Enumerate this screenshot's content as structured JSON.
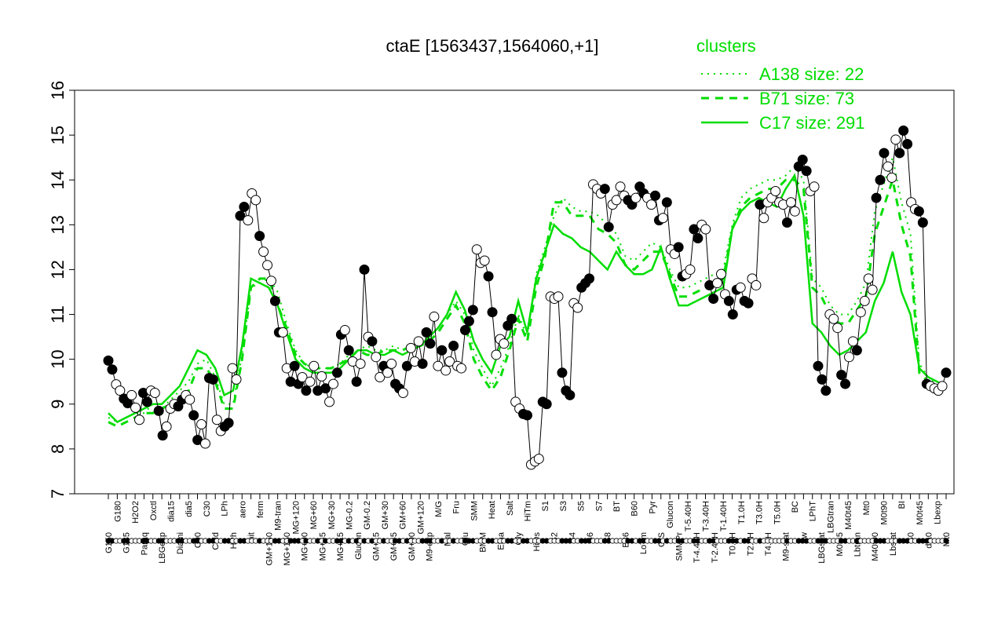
{
  "chart_data": {
    "type": "line",
    "title": "ctaE [1563437,1564060,+1]",
    "xlabel": "",
    "ylabel": "",
    "ylim": [
      7,
      16
    ],
    "yticks": [
      7,
      8,
      9,
      10,
      11,
      12,
      13,
      14,
      15,
      16
    ],
    "x_tick_labels": [
      "G150",
      "G180",
      "G135",
      "H2O2",
      "Paraq",
      "Oxctl",
      "LBGexp",
      "dia15",
      "Diami",
      "dia5",
      "C90",
      "C30",
      "Cold",
      "LPh",
      "HPh",
      "aero",
      "nit",
      "ferm",
      "GM+150",
      "M9-tran",
      "MG+150",
      "MG+120",
      "MG+90",
      "MG+60",
      "MG+45",
      "MG+30",
      "MG+15",
      "MG-0.2",
      "Glucon",
      "GM-0.2",
      "GM+15",
      "GM+30",
      "GM+45",
      "GM+60",
      "GM+90",
      "GM+120",
      "M9-exp",
      "M/G",
      "Mal",
      "Fru",
      "Glu",
      "SMM",
      "BMM",
      "Heat",
      "Etha",
      "Salt",
      "Gly",
      "HiTm",
      "HiOs",
      "S1",
      "S2",
      "S3",
      "S4",
      "S5",
      "S6",
      "S7",
      "S8",
      "BT",
      "B36",
      "B60",
      "LoTm",
      "Pyr",
      "G/S",
      "Glucon",
      "SMMPr",
      "T-5.40H",
      "T-4.40H",
      "T-3.40H",
      "T-2.40H",
      "T-1.40H",
      "T0.0H",
      "T1.0H",
      "T2.0H",
      "T3.0H",
      "T4.0H",
      "T5.0H",
      "M9-stat",
      "BC",
      "Sw",
      "LPhT",
      "LBGstat",
      "LBGtran",
      "M0t45",
      "M40t45",
      "Lbtran",
      "Mt0",
      "M40t90",
      "M0t90",
      "Lbstat",
      "BI",
      "S0",
      "M0t45",
      "dia0",
      "Lbexp",
      "Mt0"
    ],
    "series": [
      {
        "name": "A138 size: 22",
        "style": "dotted",
        "values": [
          8.7,
          8.6,
          8.7,
          8.8,
          8.8,
          9.0,
          8.9,
          9.1,
          9.3,
          9.5,
          9.9,
          10.0,
          9.6,
          9.0,
          9.0,
          10.1,
          11.6,
          11.7,
          11.8,
          11.5,
          10.8,
          10.2,
          9.9,
          9.8,
          9.8,
          9.8,
          9.9,
          10.1,
          10.2,
          10.3,
          10.2,
          10.2,
          10.3,
          10.2,
          10.3,
          10.4,
          10.5,
          10.7,
          11.0,
          11.3,
          11.0,
          10.2,
          9.8,
          9.4,
          9.8,
          10.3,
          11.0,
          10.5,
          11.9,
          12.5,
          13.2,
          13.6,
          13.4,
          13.3,
          13.3,
          13.2,
          13.0,
          12.8,
          12.3,
          12.2,
          12.4,
          12.6,
          12.5,
          12.0,
          11.6,
          11.6,
          11.7,
          11.8,
          11.9,
          12.0,
          13.0,
          13.6,
          13.8,
          13.9,
          14.0,
          14.0,
          14.1,
          14.3,
          14.0,
          11.8,
          11.6,
          11.2,
          11.0,
          11.0,
          11.3,
          11.7,
          13.3,
          13.9,
          14.5,
          13.5,
          12.8,
          9.9,
          9.6,
          9.4,
          9.4
        ]
      },
      {
        "name": "B71 size: 73",
        "style": "dashed",
        "values": [
          8.6,
          8.5,
          8.6,
          8.7,
          8.8,
          8.8,
          8.9,
          9.0,
          9.1,
          9.3,
          9.8,
          9.8,
          9.5,
          8.9,
          8.9,
          10.0,
          11.6,
          11.8,
          11.8,
          11.2,
          10.7,
          10.1,
          9.9,
          9.8,
          9.8,
          9.8,
          9.9,
          10.0,
          10.2,
          10.1,
          10.1,
          10.2,
          10.2,
          10.2,
          10.3,
          10.3,
          10.4,
          10.6,
          10.9,
          11.2,
          10.8,
          10.0,
          9.6,
          9.3,
          9.6,
          10.2,
          10.9,
          10.4,
          11.6,
          12.3,
          13.5,
          13.5,
          13.2,
          13.2,
          13.2,
          12.9,
          12.8,
          12.6,
          12.1,
          12.0,
          12.2,
          12.4,
          12.4,
          11.9,
          11.4,
          11.4,
          11.5,
          11.6,
          11.7,
          11.8,
          12.9,
          13.4,
          13.6,
          13.7,
          13.8,
          13.8,
          14.0,
          14.0,
          13.8,
          11.6,
          11.4,
          11.0,
          10.8,
          10.8,
          11.1,
          11.4,
          12.8,
          13.4,
          14.0,
          13.0,
          12.3,
          9.7,
          9.5,
          9.3,
          9.3
        ]
      },
      {
        "name": "C17 size: 291",
        "style": "solid",
        "values": [
          8.8,
          8.6,
          8.7,
          8.8,
          8.9,
          9.0,
          9.0,
          9.2,
          9.4,
          9.8,
          10.2,
          10.1,
          9.8,
          9.2,
          9.3,
          10.3,
          11.8,
          11.7,
          11.6,
          11.2,
          10.6,
          10.0,
          9.8,
          9.7,
          9.7,
          9.7,
          9.8,
          10.0,
          10.2,
          10.2,
          10.1,
          10.1,
          10.2,
          10.1,
          10.2,
          10.3,
          10.5,
          10.7,
          11.0,
          11.5,
          11.1,
          10.4,
          10.0,
          9.7,
          10.3,
          10.5,
          11.3,
          10.6,
          11.8,
          12.4,
          13.0,
          12.8,
          12.7,
          12.5,
          12.4,
          12.2,
          12.0,
          12.4,
          12.1,
          11.9,
          11.9,
          12.0,
          12.5,
          11.8,
          11.2,
          11.2,
          11.3,
          11.4,
          11.5,
          11.6,
          12.9,
          13.3,
          13.5,
          13.6,
          13.5,
          13.4,
          13.8,
          14.1,
          13.2,
          10.8,
          10.6,
          10.3,
          10.1,
          10.2,
          10.4,
          10.6,
          11.3,
          11.7,
          12.4,
          11.5,
          11.0,
          9.8,
          9.6,
          9.5,
          9.4
        ]
      }
    ],
    "points": [
      [
        9.97,
        "f"
      ],
      [
        9.77,
        "f"
      ],
      [
        9.44,
        "o"
      ],
      [
        9.3,
        "o"
      ],
      [
        9.12,
        "f"
      ],
      [
        9.02,
        "f"
      ],
      [
        9.2,
        "o"
      ],
      [
        8.92,
        "o"
      ],
      [
        8.65,
        "o"
      ],
      [
        9.25,
        "f"
      ],
      [
        9.05,
        "f"
      ],
      [
        9.3,
        "o"
      ],
      [
        9.25,
        "o"
      ],
      [
        8.85,
        "f"
      ],
      [
        8.3,
        "f"
      ],
      [
        8.5,
        "o"
      ],
      [
        8.9,
        "o"
      ],
      [
        9.0,
        "o"
      ],
      [
        8.95,
        "f"
      ],
      [
        9.1,
        "f"
      ],
      [
        9.2,
        "o"
      ],
      [
        9.1,
        "o"
      ],
      [
        8.75,
        "f"
      ],
      [
        8.2,
        "f"
      ],
      [
        8.55,
        "o"
      ],
      [
        8.12,
        "o"
      ],
      [
        9.58,
        "f"
      ],
      [
        9.55,
        "f"
      ],
      [
        8.65,
        "o"
      ],
      [
        8.4,
        "o"
      ],
      [
        8.5,
        "f"
      ],
      [
        8.58,
        "f"
      ],
      [
        9.8,
        "o"
      ],
      [
        9.55,
        "o"
      ],
      [
        13.2,
        "f"
      ],
      [
        13.4,
        "f"
      ],
      [
        13.1,
        "o"
      ],
      [
        13.7,
        "o"
      ],
      [
        13.55,
        "o"
      ],
      [
        12.75,
        "f"
      ],
      [
        12.4,
        "o"
      ],
      [
        12.1,
        "o"
      ],
      [
        11.75,
        "o"
      ],
      [
        11.3,
        "f"
      ],
      [
        10.6,
        "f"
      ],
      [
        10.6,
        "o"
      ],
      [
        9.8,
        "o"
      ],
      [
        9.5,
        "f"
      ],
      [
        9.85,
        "f"
      ],
      [
        9.45,
        "f"
      ],
      [
        9.6,
        "o"
      ],
      [
        9.3,
        "f"
      ],
      [
        9.5,
        "o"
      ],
      [
        9.85,
        "o"
      ],
      [
        9.3,
        "f"
      ],
      [
        9.62,
        "o"
      ],
      [
        9.35,
        "f"
      ],
      [
        9.05,
        "o"
      ],
      [
        9.45,
        "o"
      ],
      [
        9.7,
        "f"
      ],
      [
        10.55,
        "f"
      ],
      [
        10.65,
        "o"
      ],
      [
        10.2,
        "f"
      ],
      [
        9.95,
        "o"
      ],
      [
        9.5,
        "f"
      ],
      [
        9.9,
        "o"
      ],
      [
        12.0,
        "f"
      ],
      [
        10.5,
        "o"
      ],
      [
        10.4,
        "f"
      ],
      [
        10.05,
        "o"
      ],
      [
        9.6,
        "o"
      ],
      [
        9.85,
        "f"
      ],
      [
        9.7,
        "o"
      ],
      [
        9.9,
        "o"
      ],
      [
        9.45,
        "f"
      ],
      [
        9.35,
        "f"
      ],
      [
        9.25,
        "o"
      ],
      [
        9.85,
        "f"
      ],
      [
        10.25,
        "o"
      ],
      [
        9.95,
        "o"
      ],
      [
        10.4,
        "o"
      ],
      [
        9.9,
        "f"
      ],
      [
        10.6,
        "f"
      ],
      [
        10.35,
        "f"
      ],
      [
        10.95,
        "o"
      ],
      [
        9.85,
        "o"
      ],
      [
        10.2,
        "f"
      ],
      [
        9.75,
        "o"
      ],
      [
        9.95,
        "o"
      ],
      [
        10.3,
        "f"
      ],
      [
        9.85,
        "o"
      ],
      [
        9.8,
        "o"
      ],
      [
        10.65,
        "f"
      ],
      [
        10.85,
        "f"
      ],
      [
        11.1,
        "f"
      ],
      [
        12.45,
        "o"
      ],
      [
        12.15,
        "o"
      ],
      [
        12.2,
        "o"
      ],
      [
        11.85,
        "f"
      ],
      [
        11.05,
        "f"
      ],
      [
        10.1,
        "o"
      ],
      [
        10.45,
        "o"
      ],
      [
        10.35,
        "o"
      ],
      [
        10.75,
        "f"
      ],
      [
        10.9,
        "f"
      ],
      [
        9.05,
        "o"
      ],
      [
        8.9,
        "o"
      ],
      [
        8.78,
        "f"
      ],
      [
        8.75,
        "f"
      ],
      [
        7.65,
        "o"
      ],
      [
        7.72,
        "o"
      ],
      [
        7.78,
        "o"
      ],
      [
        9.05,
        "f"
      ],
      [
        9.0,
        "f"
      ],
      [
        11.4,
        "o"
      ],
      [
        11.35,
        "o"
      ],
      [
        11.4,
        "o"
      ],
      [
        9.7,
        "f"
      ],
      [
        9.3,
        "f"
      ],
      [
        9.2,
        "f"
      ],
      [
        11.25,
        "o"
      ],
      [
        11.15,
        "o"
      ],
      [
        11.6,
        "f"
      ],
      [
        11.7,
        "f"
      ],
      [
        11.8,
        "f"
      ],
      [
        13.9,
        "o"
      ],
      [
        13.8,
        "o"
      ],
      [
        13.7,
        "o"
      ],
      [
        13.8,
        "f"
      ],
      [
        12.95,
        "f"
      ],
      [
        13.45,
        "o"
      ],
      [
        13.55,
        "o"
      ],
      [
        13.85,
        "o"
      ],
      [
        13.65,
        "o"
      ],
      [
        13.55,
        "f"
      ],
      [
        13.45,
        "f"
      ],
      [
        13.6,
        "o"
      ],
      [
        13.85,
        "f"
      ],
      [
        13.7,
        "f"
      ],
      [
        13.6,
        "o"
      ],
      [
        13.45,
        "o"
      ],
      [
        13.65,
        "f"
      ],
      [
        13.1,
        "f"
      ],
      [
        13.15,
        "o"
      ],
      [
        13.5,
        "f"
      ],
      [
        12.45,
        "o"
      ],
      [
        12.35,
        "o"
      ],
      [
        12.5,
        "f"
      ],
      [
        11.85,
        "f"
      ],
      [
        11.9,
        "o"
      ],
      [
        12.0,
        "o"
      ],
      [
        12.9,
        "f"
      ],
      [
        12.7,
        "f"
      ],
      [
        13.0,
        "o"
      ],
      [
        12.9,
        "o"
      ],
      [
        11.65,
        "f"
      ],
      [
        11.35,
        "f"
      ],
      [
        11.7,
        "o"
      ],
      [
        11.9,
        "o"
      ],
      [
        11.45,
        "o"
      ],
      [
        11.3,
        "f"
      ],
      [
        11.0,
        "f"
      ],
      [
        11.55,
        "f"
      ],
      [
        11.6,
        "o"
      ],
      [
        11.3,
        "f"
      ],
      [
        11.25,
        "f"
      ],
      [
        11.8,
        "o"
      ],
      [
        11.65,
        "o"
      ],
      [
        13.45,
        "f"
      ],
      [
        13.15,
        "o"
      ],
      [
        13.5,
        "o"
      ],
      [
        13.6,
        "o"
      ],
      [
        13.75,
        "o"
      ],
      [
        13.5,
        "o"
      ],
      [
        13.45,
        "o"
      ],
      [
        13.05,
        "f"
      ],
      [
        13.5,
        "o"
      ],
      [
        13.3,
        "o"
      ],
      [
        14.3,
        "f"
      ],
      [
        14.45,
        "f"
      ],
      [
        14.2,
        "f"
      ],
      [
        13.75,
        "o"
      ],
      [
        13.85,
        "o"
      ],
      [
        9.85,
        "f"
      ],
      [
        9.55,
        "f"
      ],
      [
        9.3,
        "f"
      ],
      [
        11.0,
        "o"
      ],
      [
        10.9,
        "o"
      ],
      [
        10.7,
        "o"
      ],
      [
        9.65,
        "f"
      ],
      [
        9.45,
        "f"
      ],
      [
        10.05,
        "o"
      ],
      [
        10.4,
        "o"
      ],
      [
        10.2,
        "f"
      ],
      [
        11.05,
        "o"
      ],
      [
        11.3,
        "o"
      ],
      [
        11.8,
        "o"
      ],
      [
        11.55,
        "o"
      ],
      [
        13.6,
        "f"
      ],
      [
        14.0,
        "f"
      ],
      [
        14.6,
        "f"
      ],
      [
        14.3,
        "o"
      ],
      [
        14.05,
        "o"
      ],
      [
        14.9,
        "o"
      ],
      [
        14.6,
        "f"
      ],
      [
        15.1,
        "f"
      ],
      [
        14.8,
        "f"
      ],
      [
        13.5,
        "o"
      ],
      [
        13.35,
        "o"
      ],
      [
        13.3,
        "f"
      ],
      [
        13.05,
        "f"
      ],
      [
        9.45,
        "f"
      ],
      [
        9.4,
        "o"
      ],
      [
        9.35,
        "o"
      ],
      [
        9.3,
        "o"
      ],
      [
        9.4,
        "o"
      ],
      [
        9.7,
        "f"
      ]
    ],
    "legend": {
      "title": "clusters",
      "position": "top-right",
      "entries": [
        "A138 size: 22",
        "B71 size: 73",
        "C17 size: 291"
      ]
    },
    "colors": {
      "series": "#00dd00",
      "points": "#000000",
      "legend_text": "#00dd00"
    },
    "grid": false
  }
}
